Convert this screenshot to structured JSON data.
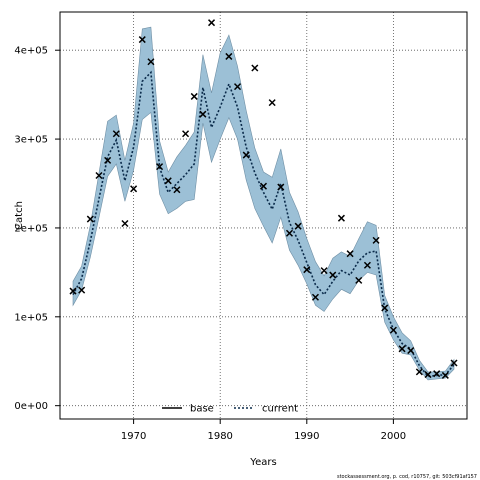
{
  "chart_data": {
    "type": "line",
    "xlabel": "Years",
    "ylabel": "Catch",
    "xlim": [
      1961.5,
      2008.5
    ],
    "ylim": [
      -15000,
      443000
    ],
    "x_ticks": [
      1970,
      1980,
      1990,
      2000
    ],
    "y_ticks": [
      0,
      100000,
      200000,
      300000,
      400000
    ],
    "y_tick_labels": [
      "0e+00",
      "1e+05",
      "2e+05",
      "3e+05",
      "4e+05"
    ],
    "grid": true,
    "legend_placement": "bottom-center",
    "colors": {
      "band": "#9cc0d6",
      "band_edge": "#6f8fa5",
      "base": "#000000",
      "current": "#0a2a4a",
      "obs": "#000000",
      "grid": "#555555"
    },
    "series": [
      {
        "name": "base",
        "style": "solid",
        "x": [
          1963,
          1964,
          1965,
          1966,
          1967,
          1968,
          1969,
          1970,
          1971,
          1972,
          1973,
          1974,
          1975,
          1976,
          1977,
          1978,
          1979,
          1980,
          1981,
          1982,
          1983,
          1984,
          1985,
          1986,
          1987,
          1988,
          1989,
          1990,
          1991,
          1992,
          1993,
          1994,
          1995,
          1996,
          1997,
          1998,
          1999,
          2000,
          2001,
          2002,
          2003,
          2004,
          2005,
          2006,
          2007
        ],
        "values": [
          125000,
          143000,
          185000,
          233000,
          280000,
          299000,
          253000,
          291000,
          365000,
          375000,
          268000,
          240000,
          250000,
          260000,
          272000,
          358000,
          313000,
          336000,
          362000,
          336000,
          291000,
          262000,
          240000,
          221000,
          250000,
          206000,
          186000,
          161000,
          136000,
          125000,
          140000,
          152000,
          147000,
          163000,
          172000,
          174000,
          109000,
          86000,
          70000,
          64000,
          45000,
          33000,
          34000,
          35000,
          46000
        ],
        "visible": false
      },
      {
        "name": "current",
        "style": "dotted",
        "x": [
          1963,
          1964,
          1965,
          1966,
          1967,
          1968,
          1969,
          1970,
          1971,
          1972,
          1973,
          1974,
          1975,
          1976,
          1977,
          1978,
          1979,
          1980,
          1981,
          1982,
          1983,
          1984,
          1985,
          1986,
          1987,
          1988,
          1989,
          1990,
          1991,
          1992,
          1993,
          1994,
          1995,
          1996,
          1997,
          1998,
          1999,
          2000,
          2001,
          2002,
          2003,
          2004,
          2005,
          2006,
          2007
        ],
        "values": [
          125000,
          143000,
          185000,
          233000,
          280000,
          299000,
          253000,
          291000,
          365000,
          375000,
          268000,
          240000,
          250000,
          260000,
          272000,
          358000,
          313000,
          336000,
          362000,
          336000,
          291000,
          262000,
          240000,
          221000,
          250000,
          206000,
          186000,
          161000,
          136000,
          125000,
          140000,
          152000,
          147000,
          163000,
          172000,
          174000,
          109000,
          86000,
          70000,
          64000,
          45000,
          33000,
          34000,
          35000,
          46000
        ]
      }
    ],
    "band": {
      "x": [
        1963,
        1964,
        1965,
        1966,
        1967,
        1968,
        1969,
        1970,
        1971,
        1972,
        1973,
        1974,
        1975,
        1976,
        1977,
        1978,
        1979,
        1980,
        1981,
        1982,
        1983,
        1984,
        1985,
        1986,
        1987,
        1988,
        1989,
        1990,
        1991,
        1992,
        1993,
        1994,
        1995,
        1996,
        1997,
        1998,
        1999,
        2000,
        2001,
        2002,
        2003,
        2004,
        2005,
        2006,
        2007
      ],
      "lower": [
        113000,
        130000,
        167000,
        212000,
        258000,
        272000,
        230000,
        265000,
        322000,
        330000,
        238000,
        216000,
        222000,
        230000,
        232000,
        318000,
        274000,
        300000,
        324000,
        300000,
        254000,
        222000,
        202000,
        183000,
        212000,
        175000,
        158000,
        137000,
        113000,
        106000,
        120000,
        131000,
        126000,
        141000,
        150000,
        147000,
        94000,
        74000,
        59000,
        57000,
        40000,
        29000,
        30000,
        31000,
        41000
      ],
      "upper": [
        140000,
        157000,
        203000,
        262000,
        320000,
        327000,
        276000,
        318000,
        424000,
        426000,
        298000,
        263000,
        280000,
        293000,
        308000,
        395000,
        352000,
        397000,
        417000,
        382000,
        332000,
        290000,
        263000,
        257000,
        289000,
        240000,
        218000,
        188000,
        162000,
        146000,
        166000,
        173000,
        168000,
        188000,
        207000,
        203000,
        124000,
        100000,
        82000,
        73000,
        51000,
        38000,
        38000,
        39000,
        52000
      ]
    },
    "observations": {
      "name": "observed",
      "x": [
        1963,
        1964,
        1965,
        1966,
        1967,
        1968,
        1969,
        1970,
        1971,
        1972,
        1973,
        1974,
        1975,
        1976,
        1977,
        1978,
        1979,
        1981,
        1982,
        1983,
        1984,
        1985,
        1986,
        1987,
        1988,
        1989,
        1990,
        1991,
        1992,
        1993,
        1994,
        1995,
        1996,
        1997,
        1998,
        1999,
        2000,
        2001,
        2002,
        2003,
        2004,
        2005,
        2006,
        2007
      ],
      "values": [
        129000,
        130000,
        210000,
        259000,
        276000,
        306000,
        205000,
        244000,
        412000,
        387000,
        269000,
        253000,
        243000,
        306000,
        348000,
        328000,
        431000,
        393000,
        359000,
        282000,
        380000,
        247000,
        341000,
        246000,
        194000,
        202000,
        153000,
        122000,
        152000,
        147000,
        211000,
        171000,
        141000,
        158000,
        186000,
        110000,
        85000,
        64000,
        62000,
        38000,
        35000,
        36000,
        34000,
        48000
      ]
    },
    "legend": [
      {
        "name": "base",
        "style": "solid"
      },
      {
        "name": "current",
        "style": "dotted"
      }
    ],
    "footer": "stockassessment.org, p. cod, r10757, git: 503cf91af157"
  }
}
